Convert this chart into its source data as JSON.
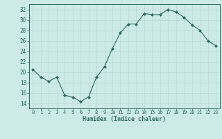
{
  "x": [
    0,
    1,
    2,
    3,
    4,
    5,
    6,
    7,
    8,
    9,
    10,
    11,
    12,
    13,
    14,
    15,
    16,
    17,
    18,
    19,
    20,
    21,
    22,
    23
  ],
  "y": [
    20.5,
    19.0,
    18.2,
    19.0,
    15.5,
    15.2,
    14.3,
    15.2,
    19.0,
    21.0,
    24.5,
    27.5,
    29.2,
    29.2,
    31.2,
    31.0,
    31.0,
    32.0,
    31.5,
    30.5,
    29.0,
    28.0,
    26.0,
    25.0
  ],
  "xlabel": "Humidex (Indice chaleur)",
  "ylim": [
    13,
    33
  ],
  "xlim": [
    -0.5,
    23.5
  ],
  "yticks": [
    14,
    16,
    18,
    20,
    22,
    24,
    26,
    28,
    30,
    32
  ],
  "xticks": [
    0,
    1,
    2,
    3,
    4,
    5,
    6,
    7,
    8,
    9,
    10,
    11,
    12,
    13,
    14,
    15,
    16,
    17,
    18,
    19,
    20,
    21,
    22,
    23
  ],
  "line_color": "#2e6b5e",
  "marker_color": "#2e6b5e",
  "bg_color": "#cceae8",
  "grid_color": "#b8d8d6",
  "tick_color": "#2e6b5e",
  "label_color": "#2e6b5e"
}
